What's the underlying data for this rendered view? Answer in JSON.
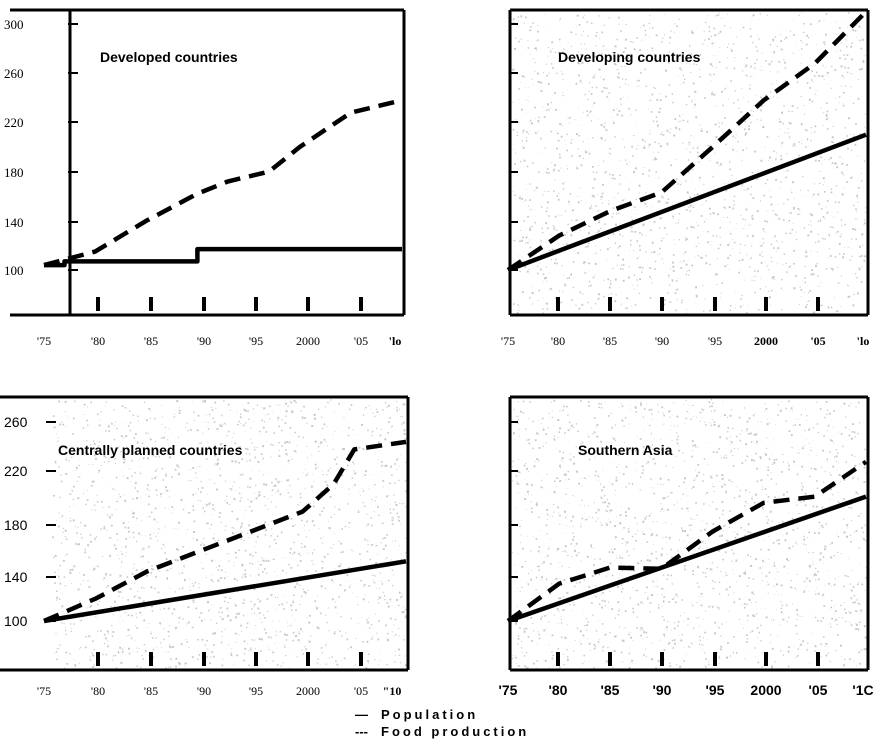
{
  "chart_data": [
    {
      "type": "line",
      "title": "Developed countries",
      "x_tick_labels": [
        "'75",
        "'80",
        "'85",
        "'90",
        "'95",
        "2000",
        "'05",
        "'lo"
      ],
      "y_tick_labels": [
        "100",
        "140",
        "180",
        "220",
        "260",
        "300"
      ],
      "ylim": [
        80,
        310
      ],
      "xlim": [
        1975,
        2010
      ],
      "series": [
        {
          "name": "Population",
          "style": "solid",
          "x": [
            1975,
            1977,
            1977,
            1990,
            1990,
            2010
          ],
          "y": [
            104,
            104,
            107,
            107,
            117,
            117
          ]
        },
        {
          "name": "Food production",
          "style": "dashed",
          "x": [
            1975,
            1980,
            1985,
            1990,
            1993,
            1997,
            2000,
            2005,
            2010
          ],
          "y": [
            104,
            115,
            140,
            162,
            172,
            180,
            200,
            228,
            238
          ]
        }
      ]
    },
    {
      "type": "line",
      "title": "Developing countries",
      "x_tick_labels": [
        "'75",
        "'80",
        "'85",
        "'90",
        "'95",
        "2000",
        "'05",
        "'lo"
      ],
      "y_tick_labels": [],
      "ylim": [
        80,
        310
      ],
      "xlim": [
        1975,
        2010
      ],
      "series": [
        {
          "name": "Population",
          "style": "solid",
          "x": [
            1975,
            2010
          ],
          "y": [
            100,
            210
          ]
        },
        {
          "name": "Food production",
          "style": "dashed",
          "x": [
            1975,
            1980,
            1985,
            1990,
            1995,
            2000,
            2005,
            2010
          ],
          "y": [
            100,
            128,
            148,
            163,
            200,
            238,
            268,
            310
          ]
        }
      ]
    },
    {
      "type": "line",
      "title": "Centrally planned countries",
      "x_tick_labels": [
        "'75",
        "'80",
        "'85",
        "'90",
        "'95",
        "2000",
        "'05",
        "\"10"
      ],
      "y_tick_labels": [
        "100",
        "140",
        "180",
        "220",
        "260"
      ],
      "ylim": [
        70,
        270
      ],
      "xlim": [
        1975,
        2010
      ],
      "series": [
        {
          "name": "Population",
          "style": "solid",
          "x": [
            1975,
            2010
          ],
          "y": [
            100,
            148
          ]
        },
        {
          "name": "Food production",
          "style": "dashed",
          "x": [
            1975,
            1980,
            1985,
            1990,
            1995,
            2000,
            2003,
            2005,
            2010
          ],
          "y": [
            100,
            118,
            140,
            156,
            172,
            188,
            210,
            238,
            244
          ]
        }
      ]
    },
    {
      "type": "line",
      "title": "Southern Asia",
      "x_tick_labels": [
        "'75",
        "'80",
        "'85",
        "'90",
        "'95",
        "2000",
        "'05",
        "'1C"
      ],
      "y_tick_labels": [],
      "ylim": [
        70,
        270
      ],
      "xlim": [
        1975,
        2010
      ],
      "series": [
        {
          "name": "Population",
          "style": "solid",
          "x": [
            1975,
            2010
          ],
          "y": [
            100,
            200
          ]
        },
        {
          "name": "Food production",
          "style": "dashed",
          "x": [
            1975,
            1980,
            1985,
            1990,
            1995,
            2000,
            2005,
            2010
          ],
          "y": [
            100,
            130,
            143,
            142,
            172,
            195,
            200,
            228
          ]
        }
      ]
    }
  ],
  "legend": [
    {
      "symbol": "—",
      "label": "Population"
    },
    {
      "symbol": "---",
      "label": "Food production"
    }
  ]
}
